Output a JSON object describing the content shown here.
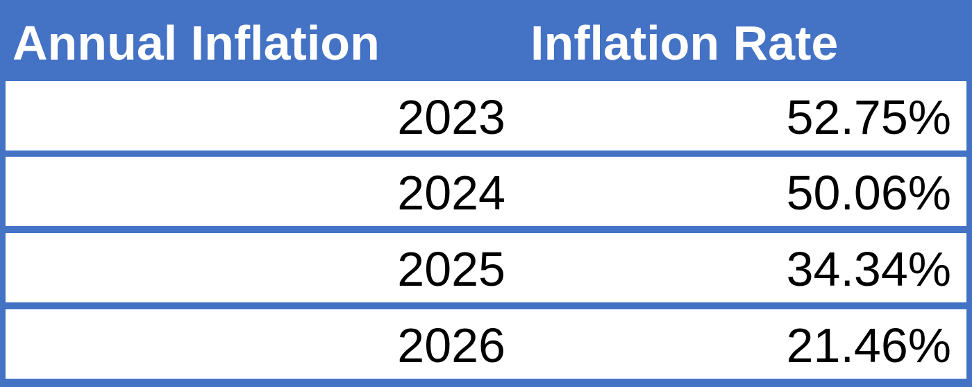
{
  "colors": {
    "header_bg": "#4472C4",
    "header_text": "#FFFFFF",
    "row_bg": "#FFFFFF",
    "row_text": "#000000"
  },
  "chart_data": {
    "type": "table",
    "columns": [
      "Annual Inflation",
      "Inflation Rate"
    ],
    "rows": [
      {
        "year": "2023",
        "rate": "52.75%"
      },
      {
        "year": "2024",
        "rate": "50.06%"
      },
      {
        "year": "2025",
        "rate": "34.34%"
      },
      {
        "year": "2026",
        "rate": "21.46%"
      }
    ],
    "x": [
      2023,
      2024,
      2025,
      2026
    ],
    "values": [
      52.75,
      50.06,
      34.34,
      21.46
    ]
  }
}
